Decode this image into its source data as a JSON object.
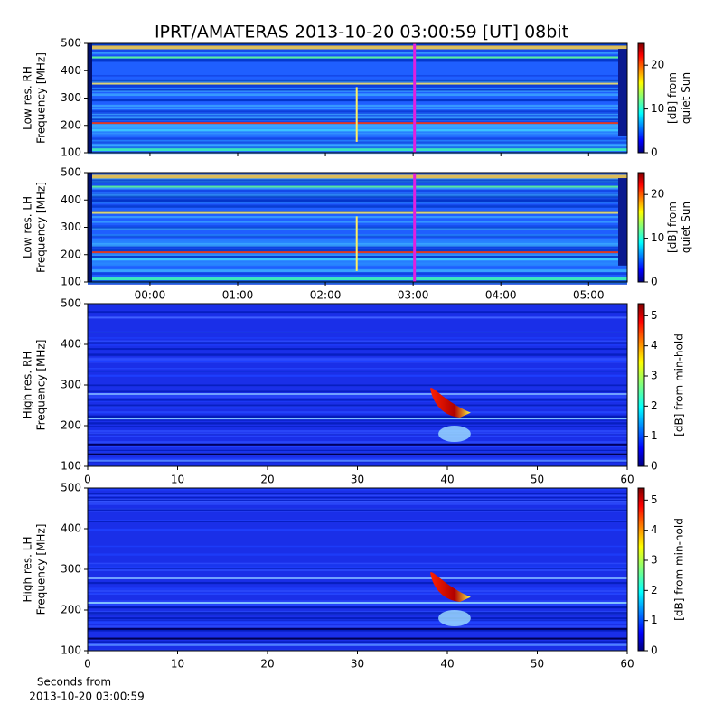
{
  "chart_data": [
    {
      "type": "heatmap",
      "title": "IPRT/AMATERAS 2013-10-20 03:00:59 [UT]   08bit",
      "ylabel": [
        "Low res. RH",
        "Frequency [MHz]"
      ],
      "xlim": [
        -0.71,
        5.44
      ],
      "xticks": [
        0,
        1,
        2,
        3,
        4,
        5
      ],
      "ylim": [
        100,
        500
      ],
      "yticks": [
        100,
        200,
        300,
        400,
        500
      ],
      "marker_x": 3.016,
      "marker_color": "#e020e0",
      "clim": [
        0,
        25
      ],
      "cticks": [
        0,
        10,
        20
      ],
      "colorbar_label": [
        "[dB] from",
        "quiet Sun"
      ]
    },
    {
      "type": "heatmap",
      "ylabel": [
        "Low res. LH",
        "Frequency [MHz]"
      ],
      "xlim": [
        -0.71,
        5.44
      ],
      "xticks": [
        {
          "value": 0,
          "label": "00:00"
        },
        {
          "value": 1,
          "label": "01:00"
        },
        {
          "value": 2,
          "label": "02:00"
        },
        {
          "value": 3,
          "label": "03:00"
        },
        {
          "value": 4,
          "label": "04:00"
        },
        {
          "value": 5,
          "label": "05:00"
        }
      ],
      "ylim": [
        100,
        500
      ],
      "yticks": [
        100,
        200,
        300,
        400,
        500
      ],
      "marker_x": 3.016,
      "marker_color": "#e020e0",
      "clim": [
        0,
        25
      ],
      "cticks": [
        0,
        10,
        20
      ],
      "colorbar_label": [
        "[dB] from",
        "quiet Sun"
      ]
    },
    {
      "type": "heatmap",
      "ylabel": [
        "High res. RH",
        "Frequency [MHz]"
      ],
      "xlim": [
        0,
        60
      ],
      "xticks": [
        0,
        10,
        20,
        30,
        40,
        50,
        60
      ],
      "ylim": [
        100,
        500
      ],
      "yticks": [
        100,
        200,
        300,
        400,
        500
      ],
      "clim": [
        0,
        5.4
      ],
      "cticks": [
        0,
        1,
        2,
        3,
        4,
        5
      ],
      "colorbar_label": [
        "[dB] from min-hold"
      ]
    },
    {
      "type": "heatmap",
      "ylabel": [
        "High res. LH",
        "Frequency [MHz]"
      ],
      "xlabel": [
        "Seconds from",
        "2013-10-20 03:00:59"
      ],
      "xlim": [
        0,
        60
      ],
      "xticks": [
        0,
        10,
        20,
        30,
        40,
        50,
        60
      ],
      "ylim": [
        100,
        500
      ],
      "yticks": [
        100,
        200,
        300,
        400,
        500
      ],
      "clim": [
        0,
        5.4
      ],
      "cticks": [
        0,
        1,
        2,
        3,
        4,
        5
      ],
      "colorbar_label": [
        "[dB] from min-hold"
      ]
    }
  ]
}
